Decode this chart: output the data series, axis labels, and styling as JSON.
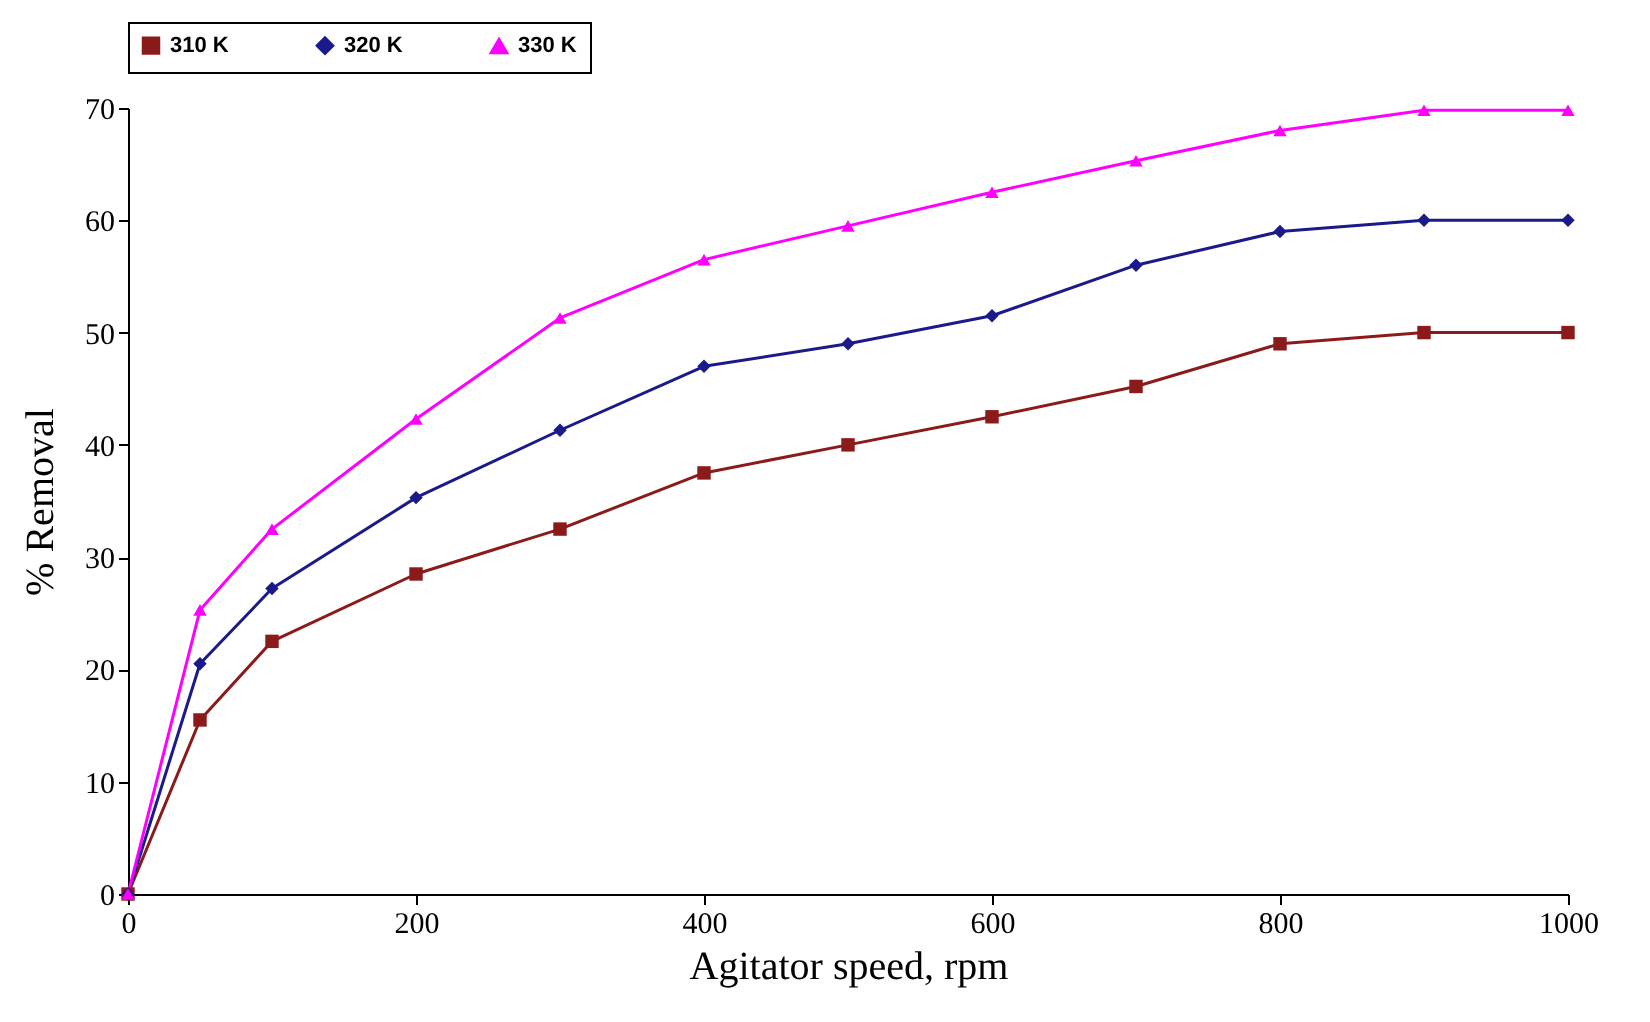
{
  "chart_data": {
    "type": "line",
    "xlabel": "Agitator speed, rpm",
    "ylabel": "% Removal",
    "x": [
      0,
      50,
      100,
      200,
      300,
      400,
      500,
      600,
      700,
      800,
      900,
      1000
    ],
    "series": [
      {
        "name": "310 K",
        "color": "#8b1a1a",
        "marker": "square",
        "values": [
          0,
          15.5,
          22.5,
          28.5,
          32.5,
          37.5,
          40,
          42.5,
          45.2,
          49,
          50,
          50
        ]
      },
      {
        "name": "320 K",
        "color": "#1a1a8b",
        "marker": "diamond",
        "values": [
          0,
          20.5,
          27.2,
          35.3,
          41.3,
          47,
          49,
          51.5,
          56,
          59,
          60,
          60
        ]
      },
      {
        "name": "330 K",
        "color": "#ff00ff",
        "marker": "triangle",
        "values": [
          0,
          25.3,
          32.5,
          42.3,
          51.3,
          56.5,
          59.5,
          62.5,
          65.3,
          68,
          69.8,
          69.8
        ]
      }
    ],
    "xlim": [
      0,
      1000
    ],
    "xticks": [
      0,
      200,
      400,
      600,
      800,
      1000
    ],
    "ylim": [
      0,
      70
    ],
    "yticks": [
      0,
      10,
      20,
      30,
      40,
      50,
      60,
      70
    ],
    "grid": false,
    "legend": "top"
  }
}
